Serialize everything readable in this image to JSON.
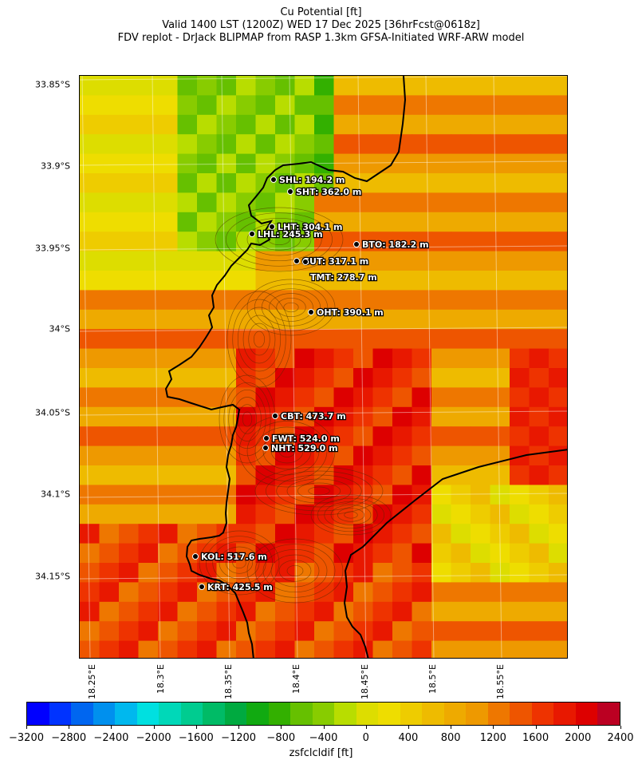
{
  "title": {
    "line1": "Cu Potential [ft]",
    "line2": "Valid 1400 LST (1200Z) WED 17 Dec 2025 [36hrFcst@0618z]",
    "line3": "FDV replot - DrJack BLIPMAP from RASP 1.3km GFSA-Initiated WRF-ARW model"
  },
  "latitude_labels": [
    "33.85°S",
    "33.9°S",
    "33.95°S",
    "34°S",
    "34.05°S",
    "34.1°S",
    "34.15°S"
  ],
  "longitude_labels": [
    "18.25°E",
    "18.3°E",
    "18.35°E",
    "18.4°E",
    "18.45°E",
    "18.5°E",
    "18.55°E"
  ],
  "stations": [
    {
      "code": "SHL",
      "label": "SHL: 194.2 m"
    },
    {
      "code": "SHT",
      "label": "SHT: 362.0 m"
    },
    {
      "code": "LHT",
      "label": "LHT: 304.1 m"
    },
    {
      "code": "LHL",
      "label": "LHL: 245.3 m"
    },
    {
      "code": "BTO",
      "label": "BTO: 182.2 m"
    },
    {
      "code": "GUT",
      "label": "GUT: 317.1 m"
    },
    {
      "code": "TMT",
      "label": "TMT: 278.7 m"
    },
    {
      "code": "OHT",
      "label": "OHT: 390.1 m"
    },
    {
      "code": "CBT",
      "label": "CBT: 473.7 m"
    },
    {
      "code": "FWT",
      "label": "FWT: 524.0 m"
    },
    {
      "code": "NHT",
      "label": "NHT: 529.0 m"
    },
    {
      "code": "KOL",
      "label": "KOL: 517.6 m"
    },
    {
      "code": "KRT",
      "label": "KRT: 425.5 m"
    }
  ],
  "colorbar": {
    "label": "zsfclcldif [ft]",
    "ticks": [
      "−3200",
      "−2800",
      "−2400",
      "−2000",
      "−1600",
      "−1200",
      "−800",
      "−400",
      "0",
      "400",
      "800",
      "1200",
      "1600",
      "2000",
      "2400"
    ],
    "colors": [
      "#0000ff",
      "#0033ff",
      "#0066f0",
      "#0090ee",
      "#00b8ee",
      "#00e0e0",
      "#00d8b8",
      "#00cc90",
      "#00bb66",
      "#00aa40",
      "#11aa11",
      "#33b000",
      "#66c000",
      "#88cc00",
      "#b8dd00",
      "#dddd00",
      "#eedd00",
      "#eecc00",
      "#eebb00",
      "#eeaa00",
      "#ee9900",
      "#ee7700",
      "#ee5500",
      "#ee3300",
      "#e81800",
      "#dd0000",
      "#bb0022"
    ]
  }
}
